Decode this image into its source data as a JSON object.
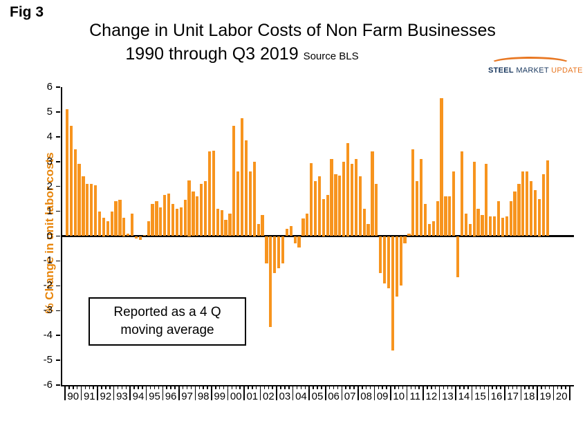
{
  "fig_label": "Fig 3",
  "title": {
    "line1": "Change in Unit Labor Costs of Non Farm Businesses",
    "line2": "1990 through Q3 2019",
    "source": "Source BLS"
  },
  "logo": {
    "steel": "STEEL",
    "market": "MARKET",
    "update": "UPDATE"
  },
  "annotation": {
    "line1": "Reported as a 4 Q",
    "line2": "moving average"
  },
  "chart_data": {
    "type": "bar",
    "title": "Change in Unit Labor Costs of Non Farm Businesses 1990 through Q3 2019",
    "source": "Source BLS",
    "ylabel": "% Change in unit labor costs",
    "xlabel": "",
    "ylim": [
      -6,
      6
    ],
    "grid": false,
    "bar_color": "#f7941e",
    "axis_color": "#000000",
    "y_ticks": [
      "6",
      "5",
      "4",
      "3",
      "2",
      "1",
      "0",
      "-1",
      "-2",
      "-3",
      "-4",
      "-5",
      "-6"
    ],
    "x_tick_labels": [
      "90",
      "91",
      "92",
      "93",
      "94",
      "95",
      "96",
      "97",
      "98",
      "99",
      "00",
      "01",
      "02",
      "03",
      "04",
      "05",
      "06",
      "07",
      "08",
      "09",
      "10",
      "11",
      "12",
      "13",
      "14",
      "15",
      "16",
      "17",
      "18",
      "19",
      "20"
    ],
    "series_name": "% change in unit labor costs, 4-quarter moving average",
    "start_quarter": "1990 Q1",
    "end_quarter": "2019 Q3",
    "values": [
      5.1,
      4.45,
      3.5,
      2.9,
      2.4,
      2.1,
      2.1,
      2.05,
      1.0,
      0.75,
      0.6,
      1.0,
      1.4,
      1.45,
      0.75,
      0.1,
      0.9,
      -0.1,
      -0.15,
      0.05,
      0.6,
      1.3,
      1.4,
      1.15,
      1.65,
      1.7,
      1.3,
      1.1,
      1.15,
      1.45,
      2.25,
      1.8,
      1.6,
      2.1,
      2.2,
      3.4,
      3.45,
      1.1,
      1.05,
      0.65,
      0.9,
      4.45,
      2.6,
      4.75,
      3.85,
      2.6,
      3.0,
      0.5,
      0.85,
      -1.1,
      -3.65,
      -1.5,
      -1.3,
      -1.1,
      0.3,
      0.4,
      -0.3,
      -0.45,
      0.7,
      0.9,
      2.95,
      2.2,
      2.4,
      1.5,
      1.65,
      3.1,
      2.5,
      2.45,
      3.0,
      3.75,
      2.9,
      3.1,
      2.4,
      1.1,
      0.5,
      3.4,
      2.1,
      -1.5,
      -1.9,
      -2.1,
      -4.6,
      -2.45,
      -2.0,
      -0.3,
      0.1,
      3.5,
      2.2,
      3.1,
      1.3,
      0.5,
      0.6,
      1.4,
      5.55,
      1.6,
      1.6,
      2.6,
      -1.65,
      3.4,
      0.9,
      0.5,
      3.0,
      1.1,
      0.85,
      2.9,
      0.8,
      0.8,
      1.4,
      0.75,
      0.8,
      1.4,
      1.8,
      2.1,
      2.6,
      2.6,
      2.2,
      1.85,
      1.5,
      2.5,
      3.05
    ]
  }
}
